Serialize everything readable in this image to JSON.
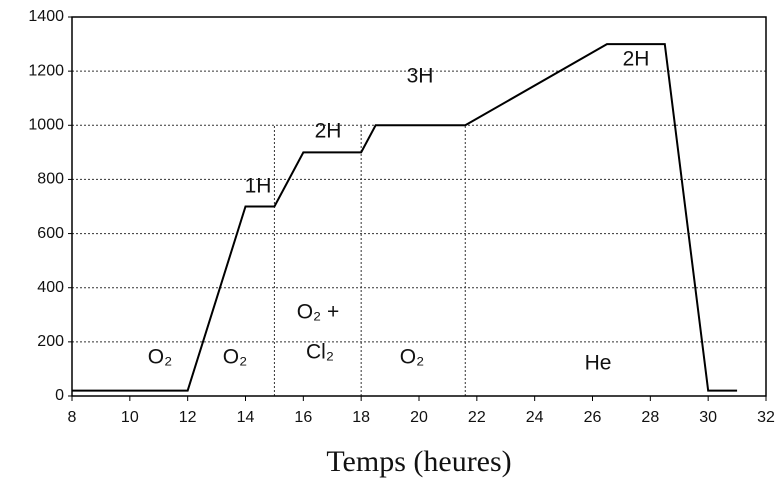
{
  "chart_data": {
    "type": "line",
    "xlabel": "Temps (heures)",
    "x": [
      8,
      12,
      14,
      15,
      16,
      18,
      18.5,
      21.6,
      26.5,
      28.5,
      30,
      31
    ],
    "series": [
      {
        "color": "#000000",
        "values": [
          20,
          20,
          700,
          700,
          900,
          900,
          1000,
          1000,
          1300,
          1300,
          20,
          20
        ]
      }
    ],
    "xlim": [
      8,
      32
    ],
    "xticks": [
      8,
      10,
      12,
      14,
      16,
      18,
      20,
      22,
      24,
      26,
      28,
      30,
      32
    ],
    "ylim": [
      0,
      1400
    ],
    "yticks": [
      0,
      200,
      400,
      600,
      800,
      1000,
      1200,
      1400
    ],
    "grid": true,
    "vlines": [
      15,
      18,
      21.6
    ],
    "annotations": [
      "O₂",
      "O₂",
      "O₂ +",
      "Cl₂",
      "O₂",
      "He",
      "1H",
      "2H",
      "3H",
      "2H"
    ]
  }
}
